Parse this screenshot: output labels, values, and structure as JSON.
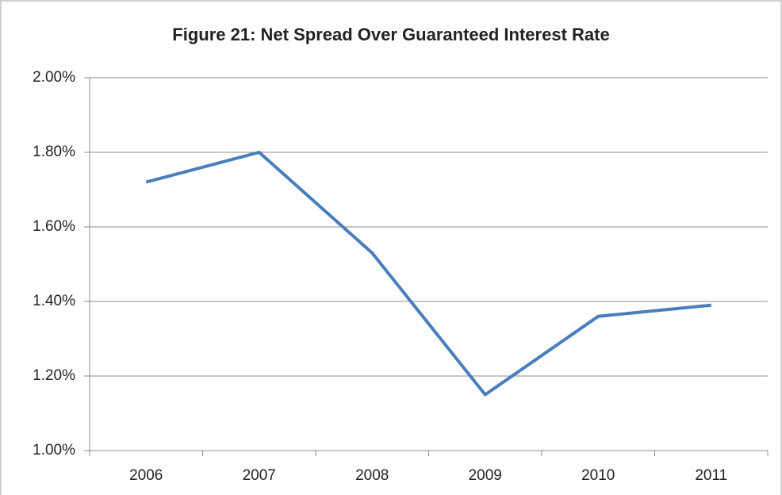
{
  "chart_data": {
    "type": "line",
    "title": "Figure 21: Net Spread Over Guaranteed Interest Rate",
    "categories": [
      "2006",
      "2007",
      "2008",
      "2009",
      "2010",
      "2011"
    ],
    "values": [
      1.72,
      1.8,
      1.53,
      1.15,
      1.36,
      1.39
    ],
    "color": "#4a7ebb",
    "ylim": [
      1.0,
      2.0
    ],
    "yticks": [
      {
        "value": 1.0,
        "label": "1.00%"
      },
      {
        "value": 1.2,
        "label": "1.20%"
      },
      {
        "value": 1.4,
        "label": "1.40%"
      },
      {
        "value": 1.6,
        "label": "1.60%"
      },
      {
        "value": 1.8,
        "label": "1.80%"
      },
      {
        "value": 2.0,
        "label": "2.00%"
      }
    ],
    "grid": true
  }
}
